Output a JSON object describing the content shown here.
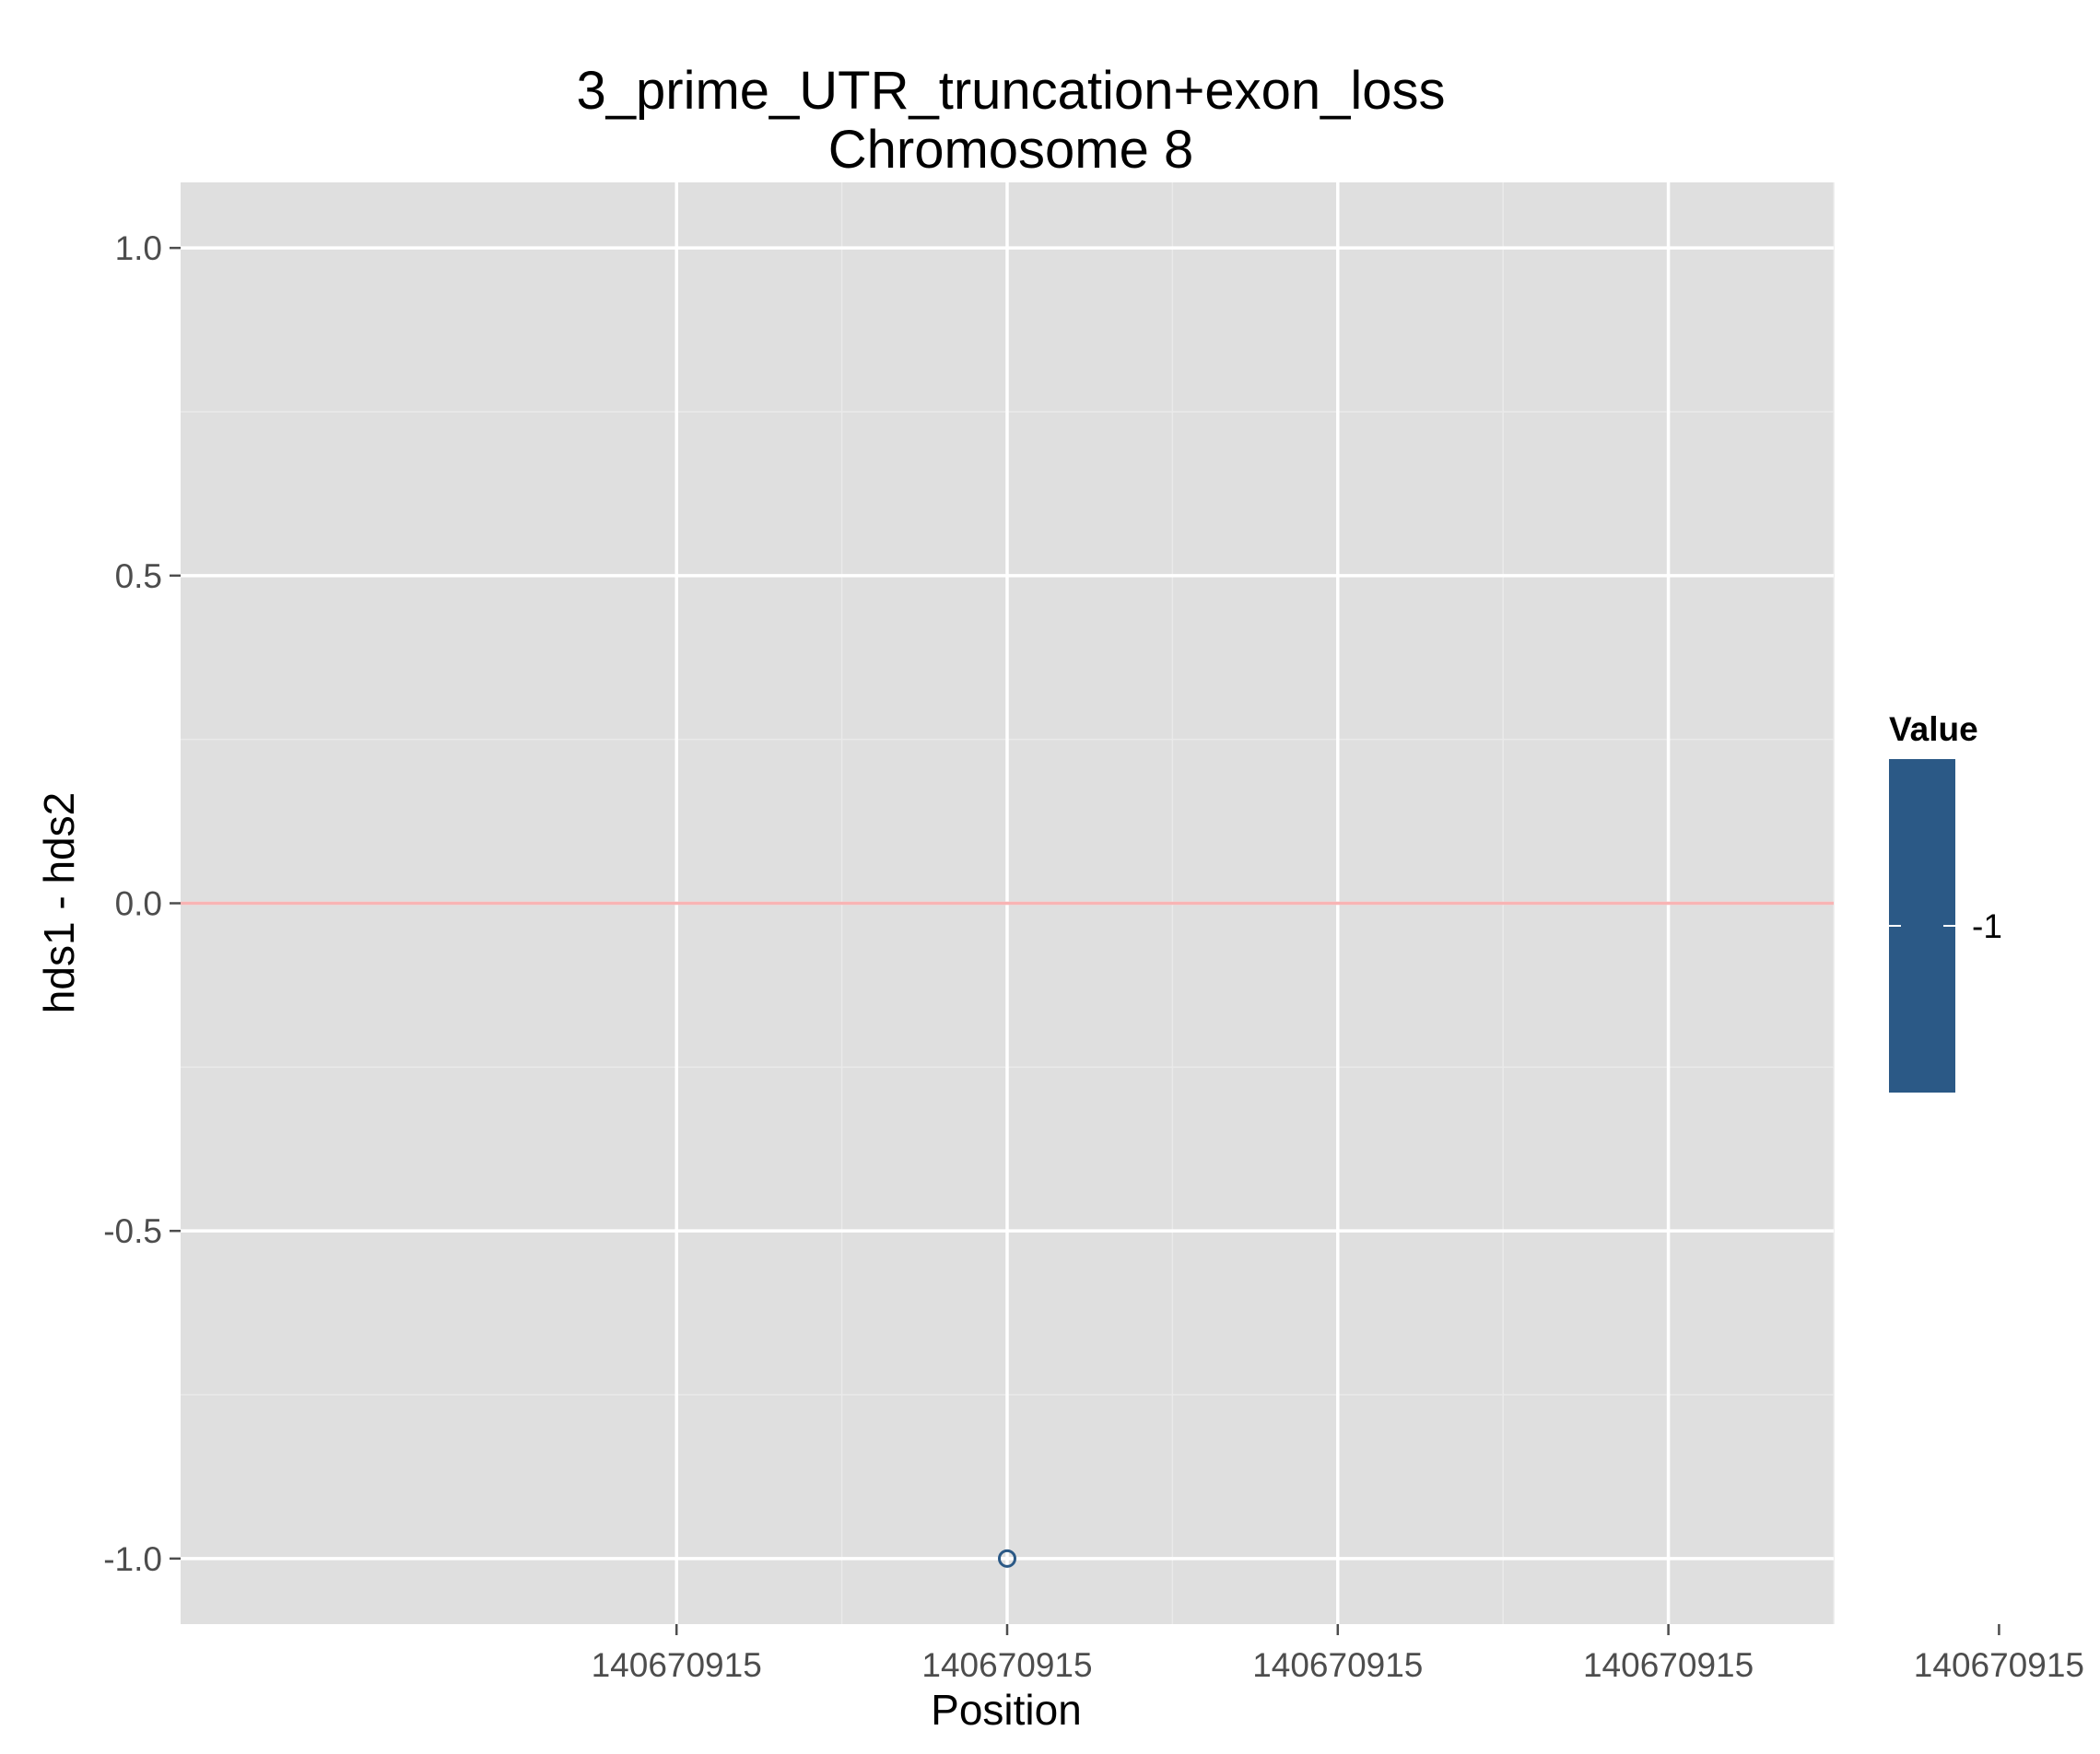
{
  "chart_data": {
    "type": "scatter",
    "title_line1": "3_prime_UTR_truncation+exon_loss",
    "title_line2": "Chromosome 8",
    "xlabel": "Position",
    "ylabel": "hds1 - hds2",
    "x_ticks": [
      "140670915",
      "140670915",
      "140670915",
      "140670915",
      "140670915"
    ],
    "y_ticks": [
      {
        "value": 1.0,
        "label": "1.0"
      },
      {
        "value": 0.5,
        "label": "0.5"
      },
      {
        "value": 0.0,
        "label": "0.0"
      },
      {
        "value": -0.5,
        "label": "-0.5"
      },
      {
        "value": -1.0,
        "label": "-1.0"
      }
    ],
    "ylim": [
      -1.1,
      1.1
    ],
    "x_domain": [
      -1.5,
      3.5
    ],
    "series": [
      {
        "points": [
          {
            "x": 1,
            "y": -1.0,
            "value": -1
          }
        ]
      }
    ],
    "reference_line": {
      "y": 0.0,
      "color": "#f8b4b4"
    },
    "legend": {
      "title": "Value",
      "labels": [
        "-1"
      ],
      "color": "#2b5986",
      "position": "right"
    },
    "grid": true,
    "colors": {
      "panel": "#dfdfdf",
      "grid_major": "#ffffff",
      "grid_minor": "#eaeaea",
      "point": "#2b5986"
    }
  }
}
